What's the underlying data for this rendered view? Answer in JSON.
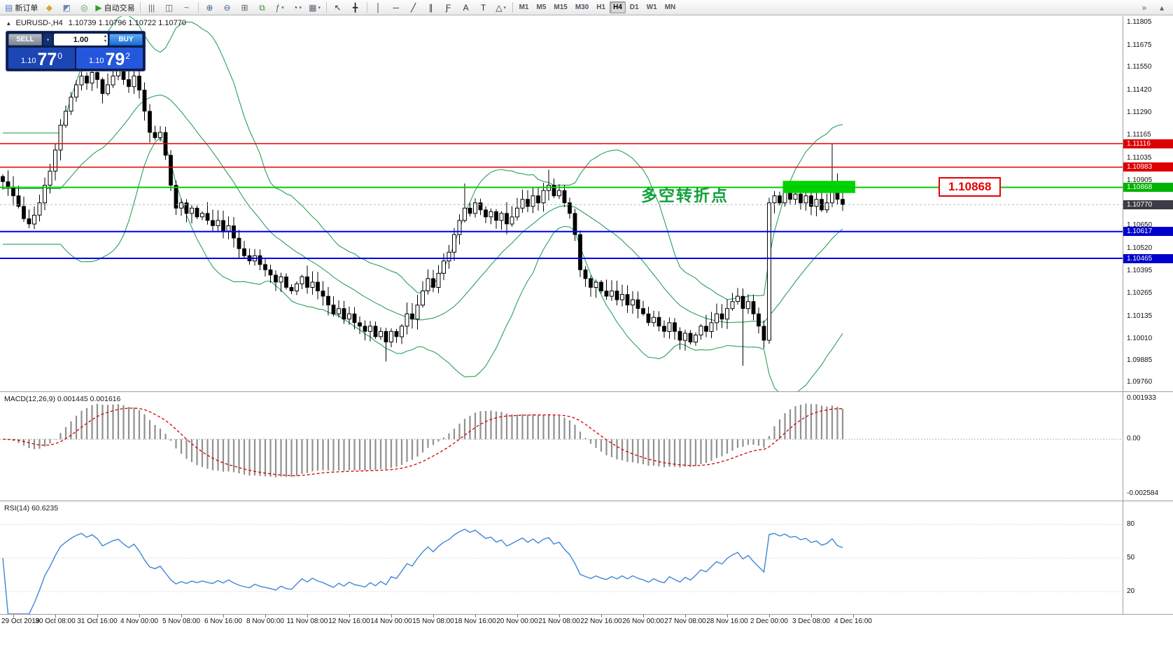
{
  "toolbar": {
    "items": [
      {
        "name": "new-order-button",
        "glyph": "▤",
        "color": "#4d7fbd",
        "label": "新订单"
      },
      {
        "name": "market-watch-icon",
        "glyph": "◆",
        "color": "#d9a43b"
      },
      {
        "name": "data-window-icon",
        "glyph": "◩",
        "color": "#6f87b0"
      },
      {
        "name": "navigator-icon",
        "glyph": "◎",
        "color": "#4d9e4d"
      },
      {
        "name": "autotrading-button",
        "glyph": "▶",
        "color": "#2ca02c",
        "label": "自动交易"
      },
      {
        "sep": true
      },
      {
        "name": "bar-chart-mode-button",
        "glyph": "|||",
        "color": "#5a6470"
      },
      {
        "name": "candlestick-mode-button",
        "glyph": "◫",
        "color": "#5a6470"
      },
      {
        "name": "line-chart-mode-button",
        "glyph": "~",
        "color": "#5a6470"
      },
      {
        "sep": true
      },
      {
        "name": "zoom-in-button",
        "glyph": "⊕",
        "color": "#41607f"
      },
      {
        "name": "zoom-out-button",
        "glyph": "⊖",
        "color": "#41607f"
      },
      {
        "name": "tile-windows-button",
        "glyph": "⊞",
        "color": "#5a6470"
      },
      {
        "name": "auto-arrange-button",
        "glyph": "⧉",
        "color": "#3c8d3c"
      },
      {
        "name": "indicators-button",
        "glyph": "ƒ",
        "color": "#2e7d32",
        "caret": true
      },
      {
        "name": "period-button",
        "glyph": "◔",
        "color": "#1f5fbf",
        "caret": true
      },
      {
        "name": "template-button",
        "glyph": "▦",
        "color": "#5a6470",
        "caret": true
      },
      {
        "sep": true
      },
      {
        "name": "cursor-tool",
        "glyph": "↖",
        "color": "#303030"
      },
      {
        "name": "crosshair-tool",
        "glyph": "╋",
        "color": "#303030"
      },
      {
        "sep": true
      },
      {
        "name": "vertical-line-tool",
        "glyph": "│",
        "color": "#303030"
      },
      {
        "name": "horizontal-line-tool",
        "glyph": "─",
        "color": "#303030"
      },
      {
        "name": "trendline-tool",
        "glyph": "╱",
        "color": "#303030"
      },
      {
        "name": "channel-tool",
        "glyph": "∥",
        "color": "#303030"
      },
      {
        "name": "fibonacci-tool",
        "glyph": "Ƒ",
        "color": "#303030"
      },
      {
        "name": "text-tool",
        "glyph": "A",
        "color": "#303030"
      },
      {
        "name": "label-tool",
        "glyph": "T",
        "color": "#303030"
      },
      {
        "name": "shapes-tool",
        "glyph": "△",
        "color": "#303030",
        "caret": true
      },
      {
        "sep": true
      }
    ],
    "right_items": [
      {
        "name": "toolbar-overflow-icon",
        "glyph": "»",
        "color": "#5a6470"
      },
      {
        "name": "toolbar-scroll-up-icon",
        "glyph": "▴",
        "color": "#5a6470"
      }
    ],
    "timeframes": [
      "M1",
      "M5",
      "M15",
      "M30",
      "H1",
      "H4",
      "D1",
      "W1",
      "MN"
    ],
    "active_timeframe": "H4"
  },
  "chart": {
    "title": {
      "collapse_glyph": "▴",
      "symbol": "EURUSD-,H4",
      "ohlc": "1.10739 1.10796 1.10722 1.10770"
    },
    "one_click": {
      "sell_label": "SELL",
      "buy_label": "BUY",
      "volume": "1.00",
      "sell_price_main": "1.10",
      "sell_price_big": "77",
      "sell_price_sup": "0",
      "buy_price_main": "1.10",
      "buy_price_big": "79",
      "buy_price_sup": "2"
    },
    "annotation": {
      "text": "多空转折点",
      "color": "#12a13b"
    },
    "callout": {
      "text": "1.10868",
      "color": "#e60000"
    },
    "levels": [
      {
        "price": 1.11116,
        "color": "#e60000",
        "width": 1.5,
        "tag": "1.11116",
        "tag_bg": "#dd0000"
      },
      {
        "price": 1.10983,
        "color": "#e60000",
        "width": 1.5,
        "tag": "1.10983",
        "tag_bg": "#dd0000"
      },
      {
        "price": 1.10868,
        "color": "#00cc00",
        "width": 2,
        "tag": "1.10868",
        "tag_bg": "#00b300"
      },
      {
        "price": 1.10617,
        "color": "#0000e6",
        "width": 2,
        "tag": "1.10617",
        "tag_bg": "#0000cc"
      },
      {
        "price": 1.10465,
        "color": "#0000e6",
        "width": 2,
        "tag": "1.10465",
        "tag_bg": "#0000cc"
      }
    ],
    "current_price": {
      "price": 1.1077,
      "tag": "1.10770",
      "tag_bg": "#3c3c46",
      "line_color": "#b5b5b5"
    },
    "zone": {
      "from_bar": 149,
      "to_bar": 162,
      "price_top": 1.10905,
      "price_bottom": 1.10836,
      "color": "#00d300"
    },
    "price_axis_labels": [
      "1.11805",
      "1.11675",
      "1.11550",
      "1.11420",
      "1.11290",
      "1.11165",
      "1.11035",
      "1.10905",
      "1.10650",
      "1.10520",
      "1.10395",
      "1.10265",
      "1.10135",
      "1.10010",
      "1.09885",
      "1.09760"
    ],
    "time_axis_labels": [
      "29 Oct 2019",
      "30 Oct 08:00",
      "31 Oct 16:00",
      "4 Nov 00:00",
      "5 Nov 08:00",
      "6 Nov 16:00",
      "8 Nov 00:00",
      "11 Nov 08:00",
      "12 Nov 16:00",
      "14 Nov 00:00",
      "15 Nov 08:00",
      "18 Nov 16:00",
      "20 Nov 00:00",
      "21 Nov 08:00",
      "22 Nov 16:00",
      "26 Nov 00:00",
      "27 Nov 08:00",
      "28 Nov 16:00",
      "2 Dec 00:00",
      "3 Dec 08:00",
      "4 Dec 16:00"
    ]
  },
  "indicators": {
    "macd": {
      "header": "MACD(12,26,9) 0.001445 0.001616",
      "fast": 12,
      "slow": 26,
      "signal": 9,
      "axis_labels": [
        "0.001933",
        "0.00",
        "-0.002584"
      ],
      "axis_values": [
        0.001933,
        0,
        -0.002584
      ],
      "ylim": [
        -0.0029,
        0.0022
      ],
      "histogram_color": "#909090",
      "signal_color": "#d00000"
    },
    "rsi": {
      "header": "RSI(14) 60.6235",
      "period": 14,
      "levels": [
        80,
        50,
        20
      ],
      "ylim": [
        0,
        100
      ],
      "line_color": "#3e86d8"
    }
  },
  "chart_data": {
    "type": "candlestick",
    "symbol": "EURUSD",
    "timeframe": "H4",
    "ylim": [
      1.0971,
      1.1184
    ],
    "bar_start_x": 4,
    "bar_spacing": 7.5,
    "label_start_bar": 2,
    "label_step": 8,
    "bollinger": {
      "period": 20,
      "deviation": 2,
      "color": "#2aa05a"
    },
    "first_open": 1.1093,
    "closes": [
      1.109,
      1.1087,
      1.1082,
      1.1076,
      1.1069,
      1.1066,
      1.1071,
      1.1078,
      1.1088,
      1.1096,
      1.1108,
      1.1122,
      1.113,
      1.1138,
      1.1145,
      1.115,
      1.1146,
      1.1152,
      1.1148,
      1.114,
      1.1145,
      1.115,
      1.1153,
      1.1148,
      1.1144,
      1.115,
      1.1142,
      1.113,
      1.1118,
      1.1115,
      1.1118,
      1.1105,
      1.1088,
      1.1075,
      1.1078,
      1.1072,
      1.1075,
      1.107,
      1.1072,
      1.1068,
      1.1065,
      1.1068,
      1.1062,
      1.1065,
      1.1058,
      1.1052,
      1.1048,
      1.1045,
      1.1048,
      1.1043,
      1.104,
      1.1037,
      1.1033,
      1.1036,
      1.103,
      1.1028,
      1.1032,
      1.1036,
      1.103,
      1.1033,
      1.1028,
      1.1025,
      1.102,
      1.1015,
      1.1018,
      1.1012,
      1.1015,
      1.101,
      1.1008,
      1.1005,
      1.1008,
      1.1002,
      1.1005,
      1.0999,
      1.1005,
      1.1002,
      1.1008,
      1.1015,
      1.1012,
      1.102,
      1.1028,
      1.1035,
      1.103,
      1.1038,
      1.1045,
      1.105,
      1.106,
      1.1068,
      1.1075,
      1.1072,
      1.1078,
      1.1074,
      1.107,
      1.1073,
      1.1068,
      1.1072,
      1.1066,
      1.107,
      1.1075,
      1.108,
      1.1076,
      1.1082,
      1.1078,
      1.1085,
      1.1088,
      1.1082,
      1.1085,
      1.1078,
      1.1072,
      1.106,
      1.104,
      1.1035,
      1.103,
      1.1033,
      1.1028,
      1.1025,
      1.1028,
      1.1023,
      1.1026,
      1.102,
      1.1023,
      1.1018,
      1.1015,
      1.101,
      1.1013,
      1.1008,
      1.1005,
      1.101,
      1.1005,
      1.1,
      1.1004,
      1.0999,
      1.1003,
      1.1008,
      1.1005,
      1.101,
      1.1015,
      1.1012,
      1.1018,
      1.1022,
      1.1025,
      1.1018,
      1.1022,
      1.1015,
      1.1008,
      1.1,
      1.1078,
      1.1082,
      1.1078,
      1.1085,
      1.108,
      1.1083,
      1.1078,
      1.1082,
      1.1076,
      1.108,
      1.1074,
      1.1078,
      1.109,
      1.108,
      1.1077
    ],
    "wick_overrides": {
      "15": {
        "h": 1.1156
      },
      "22": {
        "h": 1.11545
      },
      "73": {
        "l": 1.0988
      },
      "88": {
        "h": 1.1089
      },
      "104": {
        "h": 1.10968
      },
      "141": {
        "l": 1.09855
      },
      "146": {
        "l": 1.0998
      },
      "158": {
        "h": 1.11115
      }
    }
  }
}
